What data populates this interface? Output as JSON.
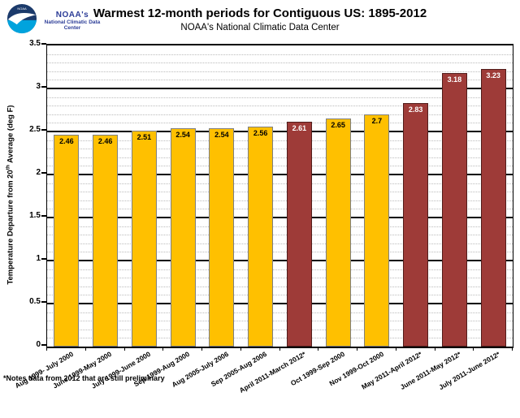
{
  "header": {
    "org_name": "NOAA's",
    "org_subtitle": "National Climatic Data Center",
    "title": "Warmest 12-month periods for Contiguous US: 1895-2012",
    "subtitle": "NOAA's National Climatic Data Center"
  },
  "footnote": "*Notes  data from 2012 that are still preliminary",
  "colors": {
    "noaa_blue": "#2B3C97",
    "logo_navy": "#1B3A6B",
    "logo_cyan": "#00A3DD",
    "major_grid": "#000000",
    "minor_grid": "#BBBBBB",
    "gold": {
      "fill": "#FFC000",
      "border": "#7F7F7F",
      "text": "#000000"
    },
    "darkred": {
      "fill": "#9E3B38",
      "border": "#521D1B",
      "text": "#FFFFFF"
    }
  },
  "chart_data": {
    "type": "bar",
    "title": "Warmest 12-month periods for Contiguous US: 1895-2012",
    "subtitle": "NOAA's National Climatic Data Center",
    "xlabel": "",
    "ylabel": {
      "pre": "Temperature Departure from 20",
      "sup": "th",
      "post": " Average (deg F)"
    },
    "ylim": [
      0,
      3.5
    ],
    "y_major_step": 0.5,
    "y_minor_step": 0.1,
    "y_ticks": [
      "0",
      "0.5",
      "1",
      "1.5",
      "2",
      "2.5",
      "3",
      "3.5"
    ],
    "grid": "major solid black, minor dotted gray",
    "legend": "none",
    "categories": [
      "Aug 1999- July 2000",
      "June 1999-May 2000",
      "July 1999-June 2000",
      "Sep 1999-Aug 2000",
      "Aug 2005-July 2006",
      "Sep 2005-Aug 2006",
      "April 2011-March 2012*",
      "Oct 1999-Sep 2000",
      "Nov 1999-Oct 2000",
      "May 2011-April 2012*",
      "June 2011-May 2012*",
      "July 2011-June 2012*"
    ],
    "values": [
      2.46,
      2.46,
      2.51,
      2.54,
      2.54,
      2.56,
      2.61,
      2.65,
      2.7,
      2.83,
      3.18,
      3.23
    ],
    "bar_colors": [
      "gold",
      "gold",
      "gold",
      "gold",
      "gold",
      "gold",
      "darkred",
      "gold",
      "gold",
      "darkred",
      "darkred",
      "darkred"
    ]
  }
}
